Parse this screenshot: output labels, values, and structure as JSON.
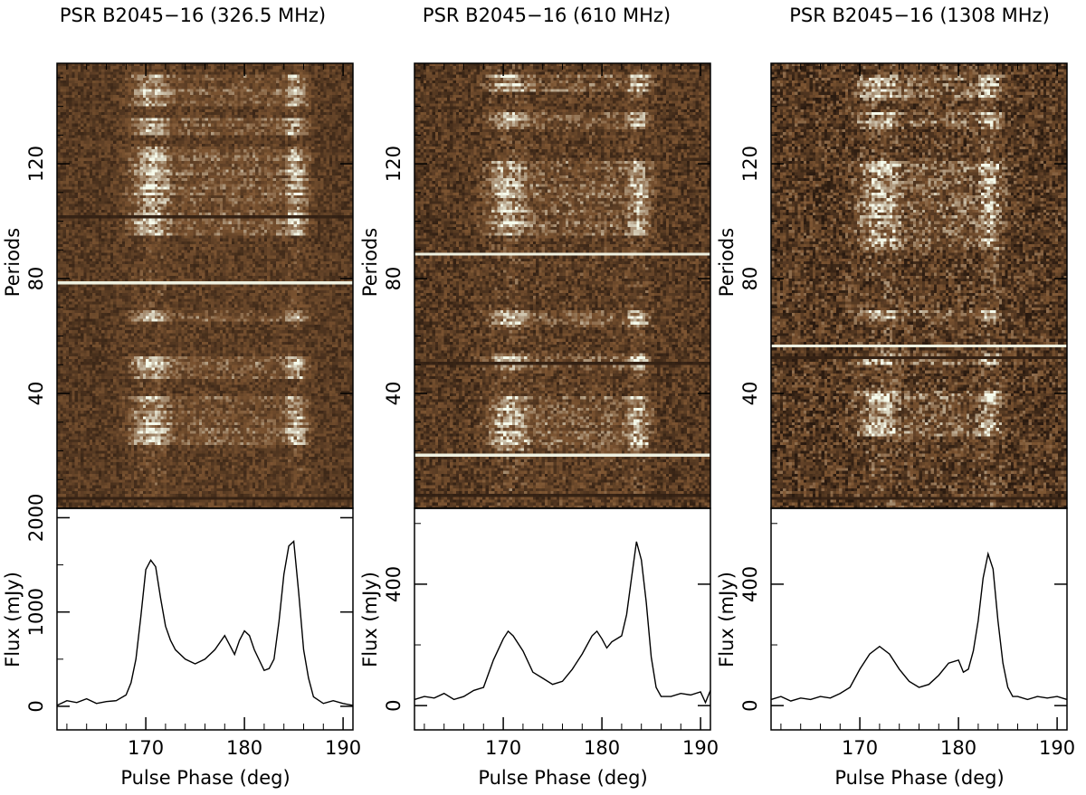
{
  "figure": {
    "description_free": true
  },
  "chart_data": [
    {
      "type": "heatmap+line",
      "title": "PSR B2045−16 (326.5 MHz)",
      "heatmap": {
        "ylabel": "Periods",
        "y_ticks": [
          "40",
          "80",
          "120"
        ],
        "y_tick_values": [
          40,
          80,
          120
        ],
        "ylim": [
          0,
          155
        ],
        "bright_bands": [
          [
            22,
            38
          ],
          [
            45,
            52
          ],
          [
            65,
            68
          ],
          [
            95,
            125
          ],
          [
            130,
            135
          ],
          [
            140,
            150
          ]
        ],
        "null_rows": [
          101,
          3
        ],
        "bright_rows": [
          78
        ]
      },
      "profile": {
        "xlabel": "Pulse Phase (deg)",
        "ylabel": "Flux (mJy)",
        "x_ticks": [
          "170",
          "180",
          "190"
        ],
        "x_tick_values": [
          170,
          180,
          190
        ],
        "y_ticks": [
          "0",
          "1000",
          "2000"
        ],
        "y_tick_values": [
          0,
          1000,
          2000
        ],
        "xlim": [
          161,
          191
        ],
        "ylim": [
          -250,
          2100
        ],
        "x": [
          161,
          162,
          163,
          164,
          165,
          166,
          167,
          168,
          168.5,
          169,
          169.5,
          170,
          170.5,
          171,
          171.5,
          172,
          172.5,
          173,
          174,
          175,
          176,
          177,
          178,
          178.5,
          179,
          179.5,
          180,
          180.5,
          181,
          182,
          182.5,
          183,
          183.5,
          184,
          184.5,
          185,
          185.5,
          186,
          186.5,
          187,
          188,
          189,
          190,
          191
        ],
        "values": [
          10,
          60,
          40,
          80,
          30,
          50,
          60,
          120,
          250,
          500,
          950,
          1450,
          1550,
          1480,
          1150,
          850,
          700,
          600,
          500,
          450,
          500,
          600,
          750,
          650,
          550,
          700,
          800,
          750,
          600,
          380,
          400,
          500,
          900,
          1400,
          1700,
          1750,
          1200,
          600,
          300,
          100,
          30,
          60,
          30,
          10
        ]
      }
    },
    {
      "type": "heatmap+line",
      "title": "PSR B2045−16 (610 MHz)",
      "heatmap": {
        "ylabel": "Periods",
        "y_ticks": [
          "40",
          "80",
          "120"
        ],
        "y_tick_values": [
          40,
          80,
          120
        ],
        "ylim": [
          0,
          155
        ],
        "bright_bands": [
          [
            20,
            38
          ],
          [
            48,
            53
          ],
          [
            63,
            68
          ],
          [
            95,
            120
          ],
          [
            132,
            137
          ],
          [
            145,
            150
          ]
        ],
        "null_rows": [
          4,
          50
        ],
        "bright_rows": [
          88,
          18
        ]
      },
      "profile": {
        "xlabel": "Pulse Phase (deg)",
        "ylabel": "Flux (mJy)",
        "x_ticks": [
          "170",
          "180",
          "190"
        ],
        "x_tick_values": [
          170,
          180,
          190
        ],
        "y_ticks": [
          "0",
          "400"
        ],
        "y_tick_values": [
          0,
          400
        ],
        "xlim": [
          161,
          191
        ],
        "ylim": [
          -80,
          650
        ],
        "x": [
          161,
          162,
          163,
          164,
          165,
          166,
          167,
          168,
          169,
          170,
          170.5,
          171,
          172,
          173,
          174,
          175,
          176,
          177,
          178,
          179,
          179.5,
          180,
          180.5,
          181,
          182,
          182.5,
          183,
          183.5,
          184,
          184.5,
          185,
          185.5,
          186,
          187,
          188,
          189,
          190,
          190.5,
          191
        ],
        "values": [
          20,
          30,
          25,
          40,
          20,
          30,
          50,
          60,
          150,
          220,
          245,
          230,
          180,
          110,
          90,
          70,
          80,
          120,
          170,
          230,
          245,
          220,
          190,
          210,
          230,
          300,
          420,
          540,
          480,
          340,
          160,
          60,
          30,
          30,
          40,
          35,
          45,
          10,
          50
        ]
      }
    },
    {
      "type": "heatmap+line",
      "title": "PSR B2045−16 (1308 MHz)",
      "heatmap": {
        "ylabel": "Periods",
        "y_ticks": [
          "40",
          "80",
          "120"
        ],
        "y_tick_values": [
          40,
          80,
          120
        ],
        "ylim": [
          0,
          155
        ],
        "bright_bands": [
          [
            25,
            40
          ],
          [
            50,
            53
          ],
          [
            65,
            68
          ],
          [
            90,
            120
          ],
          [
            132,
            137
          ],
          [
            142,
            150
          ]
        ],
        "null_rows": [
          52,
          3
        ],
        "bright_rows": [
          56
        ]
      },
      "profile": {
        "xlabel": "Pulse Phase (deg)",
        "ylabel": "Flux (mJy)",
        "x_ticks": [
          "170",
          "180",
          "190"
        ],
        "x_tick_values": [
          170,
          180,
          190
        ],
        "y_ticks": [
          "0",
          "400"
        ],
        "y_tick_values": [
          0,
          400
        ],
        "xlim": [
          161,
          191
        ],
        "ylim": [
          -80,
          650
        ],
        "x": [
          161,
          162,
          163,
          164,
          165,
          166,
          167,
          168,
          169,
          170,
          171,
          172,
          173,
          174,
          175,
          176,
          177,
          178,
          179,
          180,
          180.5,
          181,
          181.5,
          182,
          182.5,
          183,
          183.5,
          184,
          184.5,
          185,
          185.5,
          186,
          187,
          188,
          189,
          190,
          191
        ],
        "values": [
          20,
          30,
          15,
          25,
          20,
          30,
          25,
          40,
          60,
          120,
          170,
          195,
          170,
          120,
          80,
          60,
          70,
          100,
          140,
          150,
          110,
          120,
          180,
          280,
          420,
          500,
          450,
          280,
          140,
          60,
          30,
          30,
          20,
          30,
          25,
          30,
          20
        ]
      }
    }
  ]
}
